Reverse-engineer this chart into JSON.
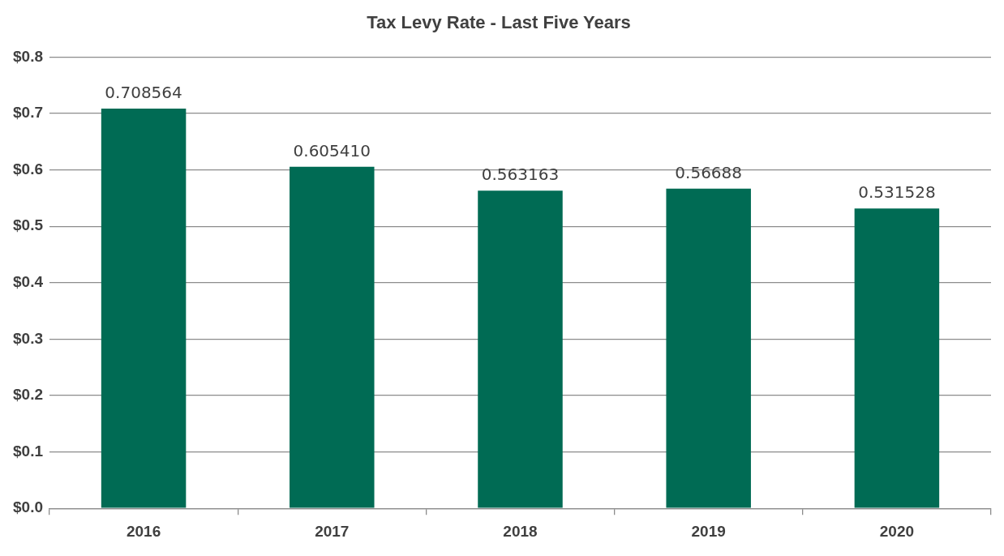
{
  "chart_data": {
    "type": "bar",
    "title": "Tax Levy Rate - Last Five Years",
    "categories": [
      "2016",
      "2017",
      "2018",
      "2019",
      "2020"
    ],
    "values": [
      0.708564,
      0.60541,
      0.563163,
      0.56688,
      0.531528
    ],
    "value_labels": [
      "0.708564",
      "0.605410",
      "0.563163",
      "0.56688",
      "0.531528"
    ],
    "color": "#006b54",
    "ylim": [
      0,
      0.8
    ],
    "yticks": [
      {
        "value": 0,
        "label": "$0.0"
      },
      {
        "value": 0.1,
        "label": "$0.1"
      },
      {
        "value": 0.2,
        "label": "$0.2"
      },
      {
        "value": 0.3,
        "label": "$0.3"
      },
      {
        "value": 0.4,
        "label": "$0.4"
      },
      {
        "value": 0.5,
        "label": "$0.5"
      },
      {
        "value": 0.6,
        "label": "$0.6"
      },
      {
        "value": 0.7,
        "label": "$0.7"
      },
      {
        "value": 0.8,
        "label": "$0.8"
      }
    ],
    "grid": "y",
    "legend": false
  }
}
